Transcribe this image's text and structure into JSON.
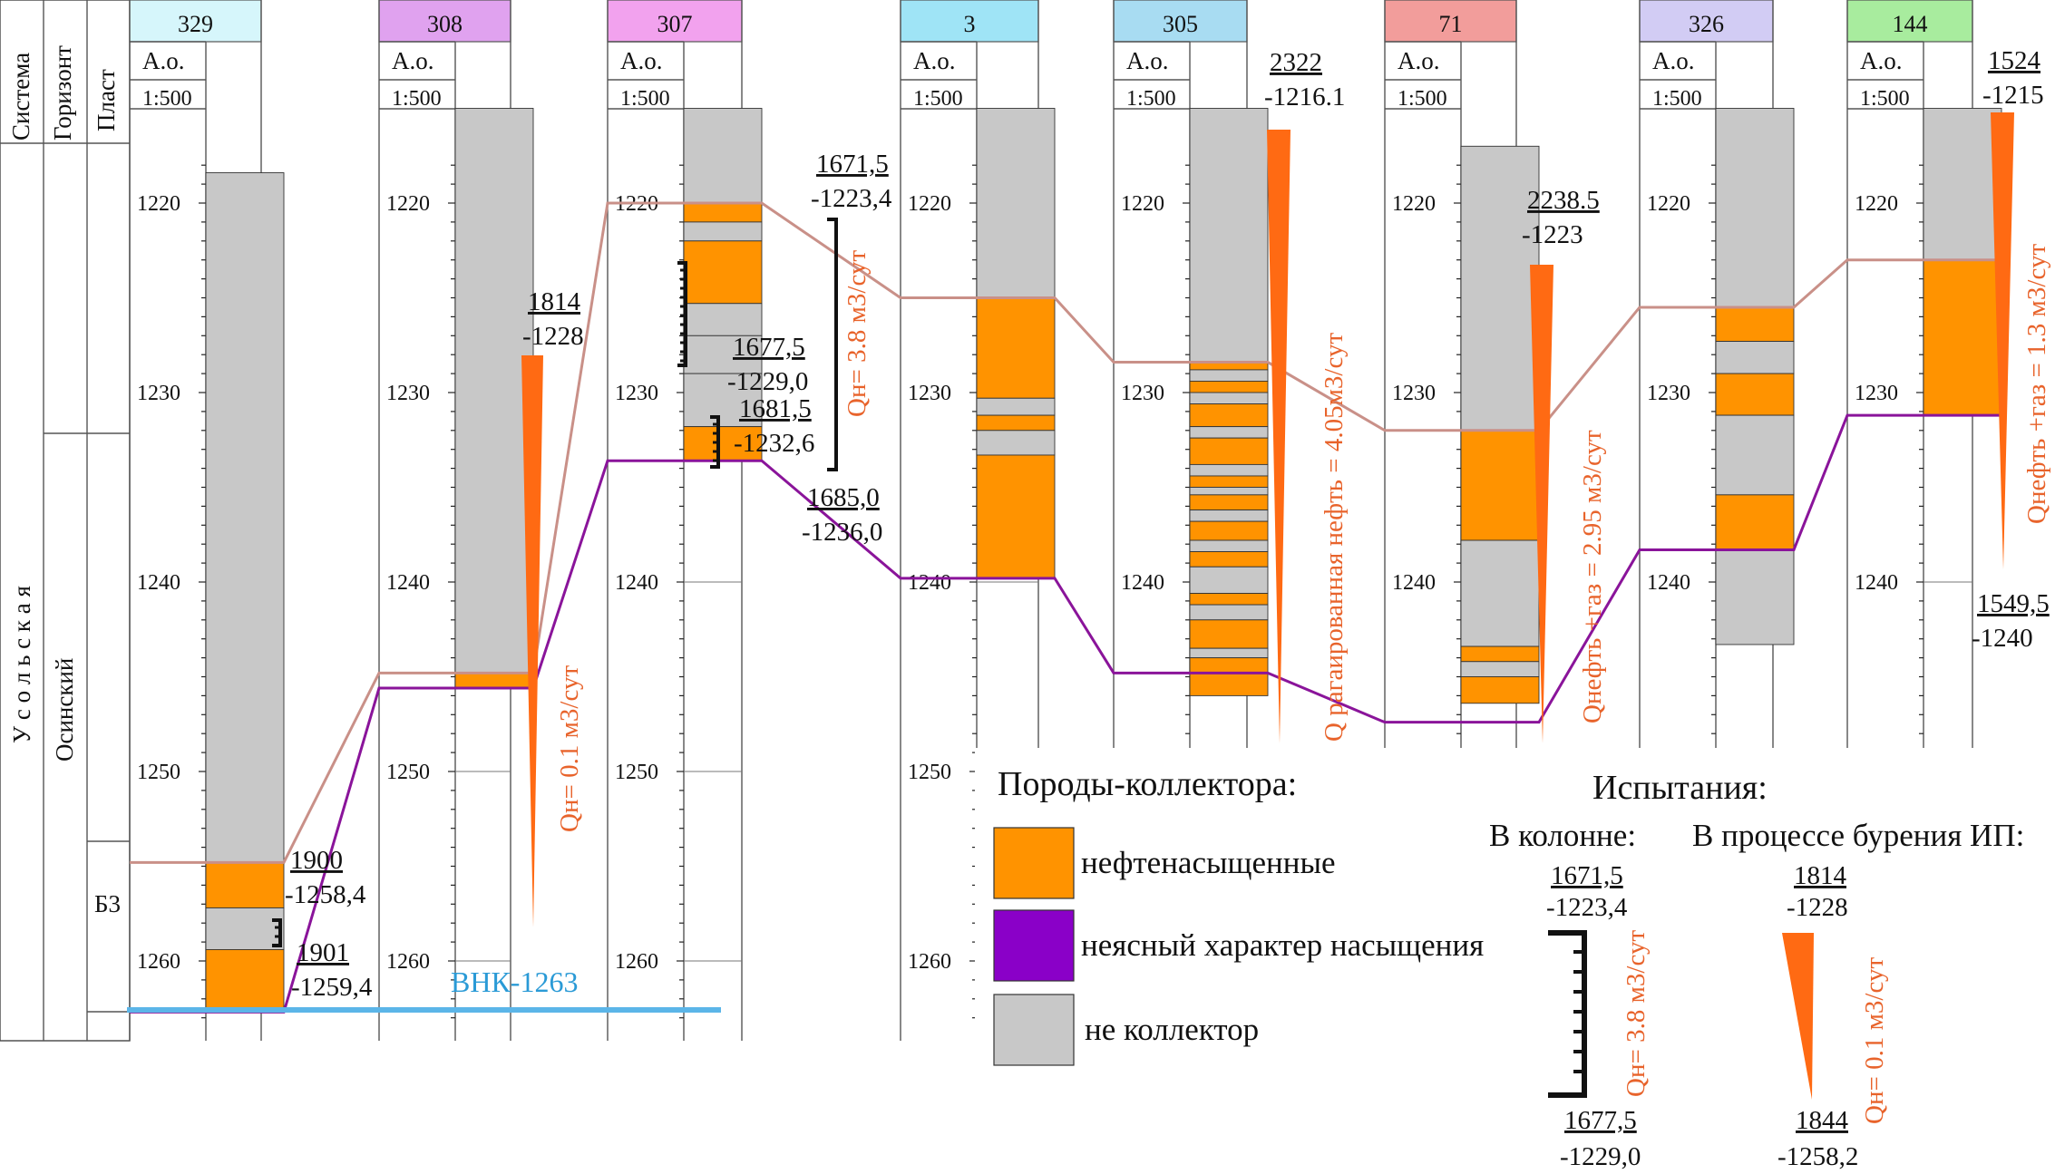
{
  "header": {
    "system": "Система",
    "horizon": "Горизонт",
    "layer": "Пласт",
    "system_value": "У с о л ь с к а я",
    "horizon_value": "Осинский",
    "layer_value": "Б3"
  },
  "colors": {
    "oil": "#ff9300",
    "unclear": "#8a00c8",
    "non": "#c8c8c8",
    "top": "#c99088",
    "bottom": "#8a149a",
    "vnk": "#5bb5e8",
    "cone": "#ff6a13",
    "qtext": "#e8632b"
  },
  "depth_ticks": [
    "1220",
    "1230",
    "1240",
    "1250",
    "1260"
  ],
  "col_head": {
    "ao": "А.о.",
    "scale": "1:500"
  },
  "wells": [
    {
      "id": "329",
      "color": "#d6f6fb"
    },
    {
      "id": "308",
      "color": "#e0a2ef"
    },
    {
      "id": "307",
      "color": "#f2a2ee"
    },
    {
      "id": "3",
      "color": "#9fe4f6"
    },
    {
      "id": "305",
      "color": "#a8dcf2"
    },
    {
      "id": "71",
      "color": "#f29d9b"
    },
    {
      "id": "326",
      "color": "#d2ccf4"
    },
    {
      "id": "144",
      "color": "#a8ec9e"
    }
  ],
  "annotations": {
    "w329a": {
      "md": "1900",
      "abs": "-1258,4"
    },
    "w329b": {
      "md": "1901",
      "abs": "-1259,4"
    },
    "w308": {
      "md": "1814",
      "abs": "-1228",
      "q": "Qн= 0.1 м3/сут"
    },
    "w307a": {
      "md": "1671,5",
      "abs": "-1223,4",
      "q": "Qн= 3.8 м3/сут"
    },
    "w307b": {
      "md": "1677,5",
      "abs": "-1229,0"
    },
    "w307c": {
      "md": "1681,5",
      "abs": "-1232,6"
    },
    "w307d": {
      "md": "1685,0",
      "abs": "-1236,0"
    },
    "w305": {
      "md": "2322",
      "abs": "-1216.1",
      "q": "Q рагаированная нефть = 4.05м3/сут"
    },
    "w71": {
      "md": "2238.5",
      "abs": "-1223",
      "q": "Qнефть +газ = 2.95 м3/сут"
    },
    "w144a": {
      "md": "1524",
      "abs": "-1215",
      "q": "Qнефть +газ = 1.3 м3/сут"
    },
    "w144b": {
      "md": "1549,5",
      "abs": "-1240"
    }
  },
  "vnk": "ВНК-1263",
  "legend": {
    "title": "Породы-коллектора:",
    "oil": "нефтенасыщенные",
    "unclear": "неясный характер насыщения",
    "non": "не коллектор",
    "tests_title": "Испытания:",
    "column": "В колонне:",
    "drilling": "В процессе бурения ИП:",
    "col_top_md": "1671,5",
    "col_top_abs": "-1223,4",
    "col_bot_md": "1677,5",
    "col_bot_abs": "-1229,0",
    "col_q": "Qн= 3.8 м3/сут",
    "dr_top_md": "1814",
    "dr_top_abs": "-1228",
    "dr_bot_md": "1844",
    "dr_bot_abs": "-1258,2",
    "dr_q": "Qн= 0.1 м3/сут"
  }
}
